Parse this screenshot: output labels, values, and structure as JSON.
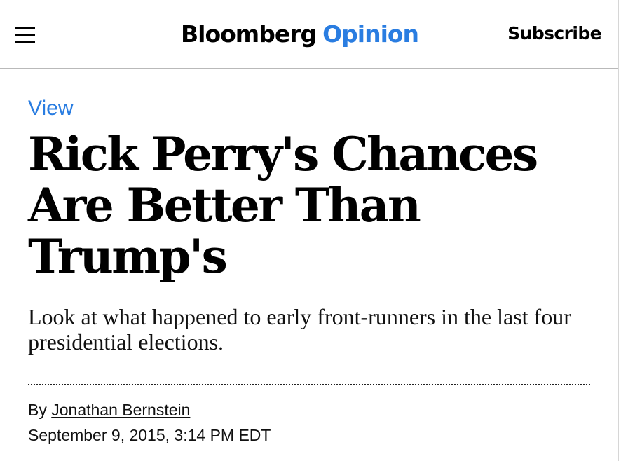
{
  "header": {
    "menu_icon": "hamburger-menu-icon",
    "logo": {
      "brand": "Bloomberg",
      "section": "Opinion"
    },
    "subscribe_label": "Subscribe"
  },
  "article": {
    "kicker": "View",
    "headline": "Rick Perry's Chances Are Better Than Trump's",
    "dek": "Look at what happened to early front-runners in the last four presidential elections.",
    "byline_prefix": "By",
    "author": "Jonathan Bernstein",
    "date": "September 9, 2015, 3:14 PM EDT"
  },
  "colors": {
    "accent": "#2a7de1",
    "text": "#000000",
    "header_border": "#b9b9b9"
  }
}
